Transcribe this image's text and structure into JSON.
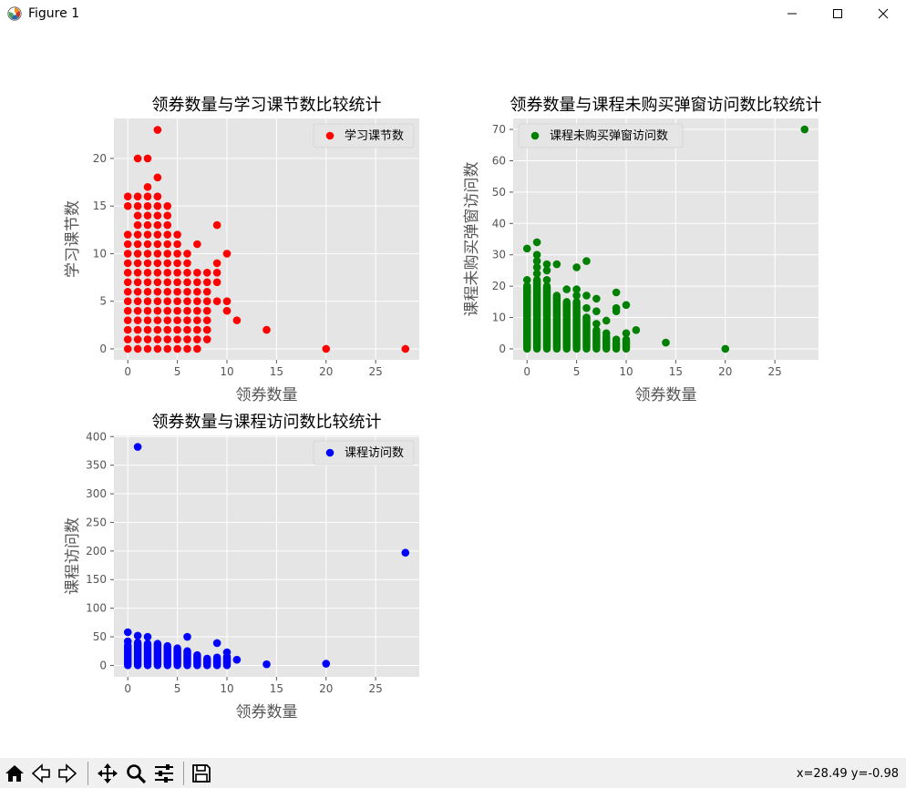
{
  "window": {
    "title": "Figure 1"
  },
  "toolbar": {
    "coords": "x=28.49 y=-0.98"
  },
  "colors": {
    "axes_bg": "#e5e5e5",
    "grid": "#ffffff",
    "tick": "#555555",
    "label": "#555555"
  },
  "chart_data": [
    {
      "type": "scatter",
      "title": "领券数量与学习课节数比较统计",
      "xlabel": "领券数量",
      "ylabel": "学习课节数",
      "legend": "学习课节数",
      "legend_loc": "upper right",
      "color": "#ff0000",
      "xlim": [
        -1.4,
        29.4
      ],
      "ylim": [
        -1.15,
        24.2
      ],
      "xticks": [
        0,
        5,
        10,
        15,
        20,
        25
      ],
      "yticks": [
        0,
        5,
        10,
        15,
        20
      ],
      "grid": true,
      "points": [
        [
          0,
          0
        ],
        [
          0,
          1
        ],
        [
          0,
          2
        ],
        [
          0,
          3
        ],
        [
          0,
          4
        ],
        [
          0,
          5
        ],
        [
          0,
          6
        ],
        [
          0,
          7
        ],
        [
          0,
          8
        ],
        [
          0,
          9
        ],
        [
          0,
          10
        ],
        [
          0,
          11
        ],
        [
          0,
          12
        ],
        [
          0,
          15
        ],
        [
          0,
          16
        ],
        [
          1,
          0
        ],
        [
          1,
          1
        ],
        [
          1,
          2
        ],
        [
          1,
          3
        ],
        [
          1,
          4
        ],
        [
          1,
          5
        ],
        [
          1,
          6
        ],
        [
          1,
          7
        ],
        [
          1,
          8
        ],
        [
          1,
          9
        ],
        [
          1,
          10
        ],
        [
          1,
          11
        ],
        [
          1,
          12
        ],
        [
          1,
          13
        ],
        [
          1,
          14
        ],
        [
          1,
          15
        ],
        [
          1,
          16
        ],
        [
          1,
          20
        ],
        [
          2,
          0
        ],
        [
          2,
          1
        ],
        [
          2,
          2
        ],
        [
          2,
          3
        ],
        [
          2,
          4
        ],
        [
          2,
          5
        ],
        [
          2,
          6
        ],
        [
          2,
          7
        ],
        [
          2,
          8
        ],
        [
          2,
          9
        ],
        [
          2,
          10
        ],
        [
          2,
          11
        ],
        [
          2,
          12
        ],
        [
          2,
          13
        ],
        [
          2,
          14
        ],
        [
          2,
          15
        ],
        [
          2,
          16
        ],
        [
          2,
          17
        ],
        [
          2,
          20
        ],
        [
          3,
          0
        ],
        [
          3,
          1
        ],
        [
          3,
          2
        ],
        [
          3,
          3
        ],
        [
          3,
          4
        ],
        [
          3,
          5
        ],
        [
          3,
          6
        ],
        [
          3,
          7
        ],
        [
          3,
          8
        ],
        [
          3,
          9
        ],
        [
          3,
          10
        ],
        [
          3,
          11
        ],
        [
          3,
          12
        ],
        [
          3,
          13
        ],
        [
          3,
          14
        ],
        [
          3,
          15
        ],
        [
          3,
          16
        ],
        [
          3,
          18
        ],
        [
          3,
          23
        ],
        [
          4,
          0
        ],
        [
          4,
          1
        ],
        [
          4,
          2
        ],
        [
          4,
          3
        ],
        [
          4,
          4
        ],
        [
          4,
          5
        ],
        [
          4,
          6
        ],
        [
          4,
          7
        ],
        [
          4,
          8
        ],
        [
          4,
          9
        ],
        [
          4,
          10
        ],
        [
          4,
          11
        ],
        [
          4,
          12
        ],
        [
          4,
          13
        ],
        [
          4,
          14
        ],
        [
          4,
          15
        ],
        [
          5,
          0
        ],
        [
          5,
          1
        ],
        [
          5,
          2
        ],
        [
          5,
          3
        ],
        [
          5,
          4
        ],
        [
          5,
          5
        ],
        [
          5,
          6
        ],
        [
          5,
          7
        ],
        [
          5,
          8
        ],
        [
          5,
          9
        ],
        [
          5,
          10
        ],
        [
          5,
          11
        ],
        [
          5,
          12
        ],
        [
          6,
          0
        ],
        [
          6,
          1
        ],
        [
          6,
          2
        ],
        [
          6,
          3
        ],
        [
          6,
          4
        ],
        [
          6,
          5
        ],
        [
          6,
          6
        ],
        [
          6,
          7
        ],
        [
          6,
          8
        ],
        [
          6,
          9
        ],
        [
          6,
          10
        ],
        [
          7,
          0
        ],
        [
          7,
          1
        ],
        [
          7,
          2
        ],
        [
          7,
          3
        ],
        [
          7,
          4
        ],
        [
          7,
          5
        ],
        [
          7,
          6
        ],
        [
          7,
          7
        ],
        [
          7,
          8
        ],
        [
          7,
          11
        ],
        [
          8,
          1
        ],
        [
          8,
          2
        ],
        [
          8,
          3
        ],
        [
          8,
          4
        ],
        [
          8,
          5
        ],
        [
          8,
          6
        ],
        [
          8,
          7
        ],
        [
          8,
          8
        ],
        [
          9,
          5
        ],
        [
          9,
          7
        ],
        [
          9,
          8
        ],
        [
          9,
          9
        ],
        [
          9,
          13
        ],
        [
          10,
          4
        ],
        [
          10,
          5
        ],
        [
          10,
          10
        ],
        [
          11,
          3
        ],
        [
          14,
          2
        ],
        [
          20,
          0
        ],
        [
          28,
          0
        ]
      ]
    },
    {
      "type": "scatter",
      "title": "领券数量与课程未购买弹窗访问数比较统计",
      "xlabel": "领券数量",
      "ylabel": "课程未购买弹窗访问数",
      "legend": "课程未购买弹窗访问数",
      "legend_loc": "upper left",
      "color": "#008000",
      "xlim": [
        -1.4,
        29.4
      ],
      "ylim": [
        -3.5,
        73.5
      ],
      "xticks": [
        0,
        5,
        10,
        15,
        20,
        25
      ],
      "yticks": [
        0,
        10,
        20,
        30,
        40,
        50,
        60,
        70
      ],
      "grid": true,
      "points": [
        [
          0,
          32
        ],
        [
          0,
          22
        ],
        [
          0,
          20
        ],
        [
          0,
          18
        ],
        [
          1,
          34
        ],
        [
          1,
          30
        ],
        [
          1,
          28
        ],
        [
          1,
          26
        ],
        [
          1,
          24
        ],
        [
          2,
          27
        ],
        [
          2,
          25
        ],
        [
          2,
          22
        ],
        [
          3,
          27
        ],
        [
          4,
          19
        ],
        [
          4,
          14
        ],
        [
          5,
          26
        ],
        [
          5,
          19
        ],
        [
          5,
          17
        ],
        [
          6,
          28
        ],
        [
          6,
          17
        ],
        [
          6,
          13
        ],
        [
          6,
          10
        ],
        [
          7,
          16
        ],
        [
          7,
          12
        ],
        [
          7,
          8
        ],
        [
          8,
          9
        ],
        [
          8,
          5
        ],
        [
          9,
          18
        ],
        [
          9,
          13
        ],
        [
          9,
          12
        ],
        [
          9,
          3
        ],
        [
          10,
          14
        ],
        [
          10,
          5
        ],
        [
          11,
          6
        ],
        [
          14,
          2
        ],
        [
          20,
          0
        ],
        [
          28,
          70
        ]
      ],
      "dense_columns": [
        [
          0,
          0,
          20
        ],
        [
          1,
          0,
          22
        ],
        [
          2,
          0,
          20
        ],
        [
          3,
          0,
          17
        ],
        [
          4,
          0,
          15
        ],
        [
          5,
          0,
          15
        ],
        [
          6,
          0,
          10
        ],
        [
          7,
          0,
          6
        ],
        [
          8,
          0,
          4
        ],
        [
          9,
          0,
          2
        ],
        [
          10,
          0,
          3
        ]
      ]
    },
    {
      "type": "scatter",
      "title": "领券数量与课程访问数比较统计",
      "xlabel": "领券数量",
      "ylabel": "课程访问数",
      "legend": "课程访问数",
      "legend_loc": "upper right",
      "color": "#0000ff",
      "xlim": [
        -1.4,
        29.4
      ],
      "ylim": [
        -20,
        402
      ],
      "xticks": [
        0,
        5,
        10,
        15,
        20,
        25
      ],
      "yticks": [
        0,
        50,
        100,
        150,
        200,
        250,
        300,
        350,
        400
      ],
      "grid": true,
      "points": [
        [
          0,
          58
        ],
        [
          0,
          42
        ],
        [
          1,
          382
        ],
        [
          1,
          52
        ],
        [
          2,
          50
        ],
        [
          6,
          50
        ],
        [
          9,
          39
        ],
        [
          10,
          23
        ],
        [
          11,
          10
        ],
        [
          14,
          2
        ],
        [
          20,
          3
        ],
        [
          28,
          197
        ]
      ],
      "dense_columns": [
        [
          0,
          0,
          35
        ],
        [
          1,
          0,
          40
        ],
        [
          2,
          0,
          38
        ],
        [
          3,
          0,
          38
        ],
        [
          4,
          0,
          34
        ],
        [
          5,
          0,
          30
        ],
        [
          6,
          0,
          25
        ],
        [
          7,
          0,
          18
        ],
        [
          8,
          0,
          12
        ],
        [
          9,
          0,
          14
        ],
        [
          10,
          0,
          15
        ]
      ]
    }
  ]
}
